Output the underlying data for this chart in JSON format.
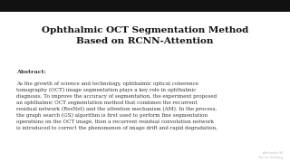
{
  "title_line1": "Ophthalmic OCT Segmentation Method",
  "title_line2": "Based on RCNN-Attention",
  "abstract_label": "Abstract:",
  "abstract_text": "As the growth of science and technology, ophthalmic optical coherence\ntomography (OCT) image segmentation plays a key role in ophthalmic\ndiagnosis. To improve the accuracy of segmentation, the experiment proposed\nan ophthalmic OCT segmentation method that combines the recurrent\nresidual network (ResNet) and the attention mechanism (AM). In the process,\nthe graph search (GS) algorithm is first used to perform fine segmentation\noperations on the OCT image, then a recurrent residual convolution network\nis introduced to correct the phenomenon of image drift and rapid degradation,",
  "background_color": "#ffffff",
  "top_bar_color": "#111111",
  "top_bar_height": 0.072,
  "title_color": "#111111",
  "body_color": "#333333",
  "watermark": "Activate W\nGo to Setting",
  "watermark_color": "#bbbbbb"
}
